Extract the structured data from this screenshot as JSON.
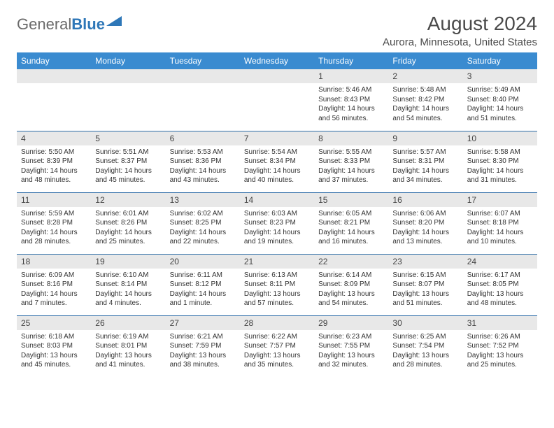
{
  "brand": {
    "part1": "General",
    "part2": "Blue"
  },
  "title": {
    "month": "August 2024",
    "location": "Aurora, Minnesota, United States"
  },
  "colors": {
    "header_bg": "#3a8bd0",
    "header_text": "#ffffff",
    "daynum_bg": "#e8e8e8",
    "row_divider": "#2e6da8",
    "brand_gray": "#6a6a6a",
    "brand_blue": "#2e77b8"
  },
  "weekdays": [
    "Sunday",
    "Monday",
    "Tuesday",
    "Wednesday",
    "Thursday",
    "Friday",
    "Saturday"
  ],
  "weeks": [
    [
      {
        "n": "",
        "sr": "",
        "ss": "",
        "dl": ""
      },
      {
        "n": "",
        "sr": "",
        "ss": "",
        "dl": ""
      },
      {
        "n": "",
        "sr": "",
        "ss": "",
        "dl": ""
      },
      {
        "n": "",
        "sr": "",
        "ss": "",
        "dl": ""
      },
      {
        "n": "1",
        "sr": "Sunrise: 5:46 AM",
        "ss": "Sunset: 8:43 PM",
        "dl": "Daylight: 14 hours and 56 minutes."
      },
      {
        "n": "2",
        "sr": "Sunrise: 5:48 AM",
        "ss": "Sunset: 8:42 PM",
        "dl": "Daylight: 14 hours and 54 minutes."
      },
      {
        "n": "3",
        "sr": "Sunrise: 5:49 AM",
        "ss": "Sunset: 8:40 PM",
        "dl": "Daylight: 14 hours and 51 minutes."
      }
    ],
    [
      {
        "n": "4",
        "sr": "Sunrise: 5:50 AM",
        "ss": "Sunset: 8:39 PM",
        "dl": "Daylight: 14 hours and 48 minutes."
      },
      {
        "n": "5",
        "sr": "Sunrise: 5:51 AM",
        "ss": "Sunset: 8:37 PM",
        "dl": "Daylight: 14 hours and 45 minutes."
      },
      {
        "n": "6",
        "sr": "Sunrise: 5:53 AM",
        "ss": "Sunset: 8:36 PM",
        "dl": "Daylight: 14 hours and 43 minutes."
      },
      {
        "n": "7",
        "sr": "Sunrise: 5:54 AM",
        "ss": "Sunset: 8:34 PM",
        "dl": "Daylight: 14 hours and 40 minutes."
      },
      {
        "n": "8",
        "sr": "Sunrise: 5:55 AM",
        "ss": "Sunset: 8:33 PM",
        "dl": "Daylight: 14 hours and 37 minutes."
      },
      {
        "n": "9",
        "sr": "Sunrise: 5:57 AM",
        "ss": "Sunset: 8:31 PM",
        "dl": "Daylight: 14 hours and 34 minutes."
      },
      {
        "n": "10",
        "sr": "Sunrise: 5:58 AM",
        "ss": "Sunset: 8:30 PM",
        "dl": "Daylight: 14 hours and 31 minutes."
      }
    ],
    [
      {
        "n": "11",
        "sr": "Sunrise: 5:59 AM",
        "ss": "Sunset: 8:28 PM",
        "dl": "Daylight: 14 hours and 28 minutes."
      },
      {
        "n": "12",
        "sr": "Sunrise: 6:01 AM",
        "ss": "Sunset: 8:26 PM",
        "dl": "Daylight: 14 hours and 25 minutes."
      },
      {
        "n": "13",
        "sr": "Sunrise: 6:02 AM",
        "ss": "Sunset: 8:25 PM",
        "dl": "Daylight: 14 hours and 22 minutes."
      },
      {
        "n": "14",
        "sr": "Sunrise: 6:03 AM",
        "ss": "Sunset: 8:23 PM",
        "dl": "Daylight: 14 hours and 19 minutes."
      },
      {
        "n": "15",
        "sr": "Sunrise: 6:05 AM",
        "ss": "Sunset: 8:21 PM",
        "dl": "Daylight: 14 hours and 16 minutes."
      },
      {
        "n": "16",
        "sr": "Sunrise: 6:06 AM",
        "ss": "Sunset: 8:20 PM",
        "dl": "Daylight: 14 hours and 13 minutes."
      },
      {
        "n": "17",
        "sr": "Sunrise: 6:07 AM",
        "ss": "Sunset: 8:18 PM",
        "dl": "Daylight: 14 hours and 10 minutes."
      }
    ],
    [
      {
        "n": "18",
        "sr": "Sunrise: 6:09 AM",
        "ss": "Sunset: 8:16 PM",
        "dl": "Daylight: 14 hours and 7 minutes."
      },
      {
        "n": "19",
        "sr": "Sunrise: 6:10 AM",
        "ss": "Sunset: 8:14 PM",
        "dl": "Daylight: 14 hours and 4 minutes."
      },
      {
        "n": "20",
        "sr": "Sunrise: 6:11 AM",
        "ss": "Sunset: 8:12 PM",
        "dl": "Daylight: 14 hours and 1 minute."
      },
      {
        "n": "21",
        "sr": "Sunrise: 6:13 AM",
        "ss": "Sunset: 8:11 PM",
        "dl": "Daylight: 13 hours and 57 minutes."
      },
      {
        "n": "22",
        "sr": "Sunrise: 6:14 AM",
        "ss": "Sunset: 8:09 PM",
        "dl": "Daylight: 13 hours and 54 minutes."
      },
      {
        "n": "23",
        "sr": "Sunrise: 6:15 AM",
        "ss": "Sunset: 8:07 PM",
        "dl": "Daylight: 13 hours and 51 minutes."
      },
      {
        "n": "24",
        "sr": "Sunrise: 6:17 AM",
        "ss": "Sunset: 8:05 PM",
        "dl": "Daylight: 13 hours and 48 minutes."
      }
    ],
    [
      {
        "n": "25",
        "sr": "Sunrise: 6:18 AM",
        "ss": "Sunset: 8:03 PM",
        "dl": "Daylight: 13 hours and 45 minutes."
      },
      {
        "n": "26",
        "sr": "Sunrise: 6:19 AM",
        "ss": "Sunset: 8:01 PM",
        "dl": "Daylight: 13 hours and 41 minutes."
      },
      {
        "n": "27",
        "sr": "Sunrise: 6:21 AM",
        "ss": "Sunset: 7:59 PM",
        "dl": "Daylight: 13 hours and 38 minutes."
      },
      {
        "n": "28",
        "sr": "Sunrise: 6:22 AM",
        "ss": "Sunset: 7:57 PM",
        "dl": "Daylight: 13 hours and 35 minutes."
      },
      {
        "n": "29",
        "sr": "Sunrise: 6:23 AM",
        "ss": "Sunset: 7:55 PM",
        "dl": "Daylight: 13 hours and 32 minutes."
      },
      {
        "n": "30",
        "sr": "Sunrise: 6:25 AM",
        "ss": "Sunset: 7:54 PM",
        "dl": "Daylight: 13 hours and 28 minutes."
      },
      {
        "n": "31",
        "sr": "Sunrise: 6:26 AM",
        "ss": "Sunset: 7:52 PM",
        "dl": "Daylight: 13 hours and 25 minutes."
      }
    ]
  ]
}
